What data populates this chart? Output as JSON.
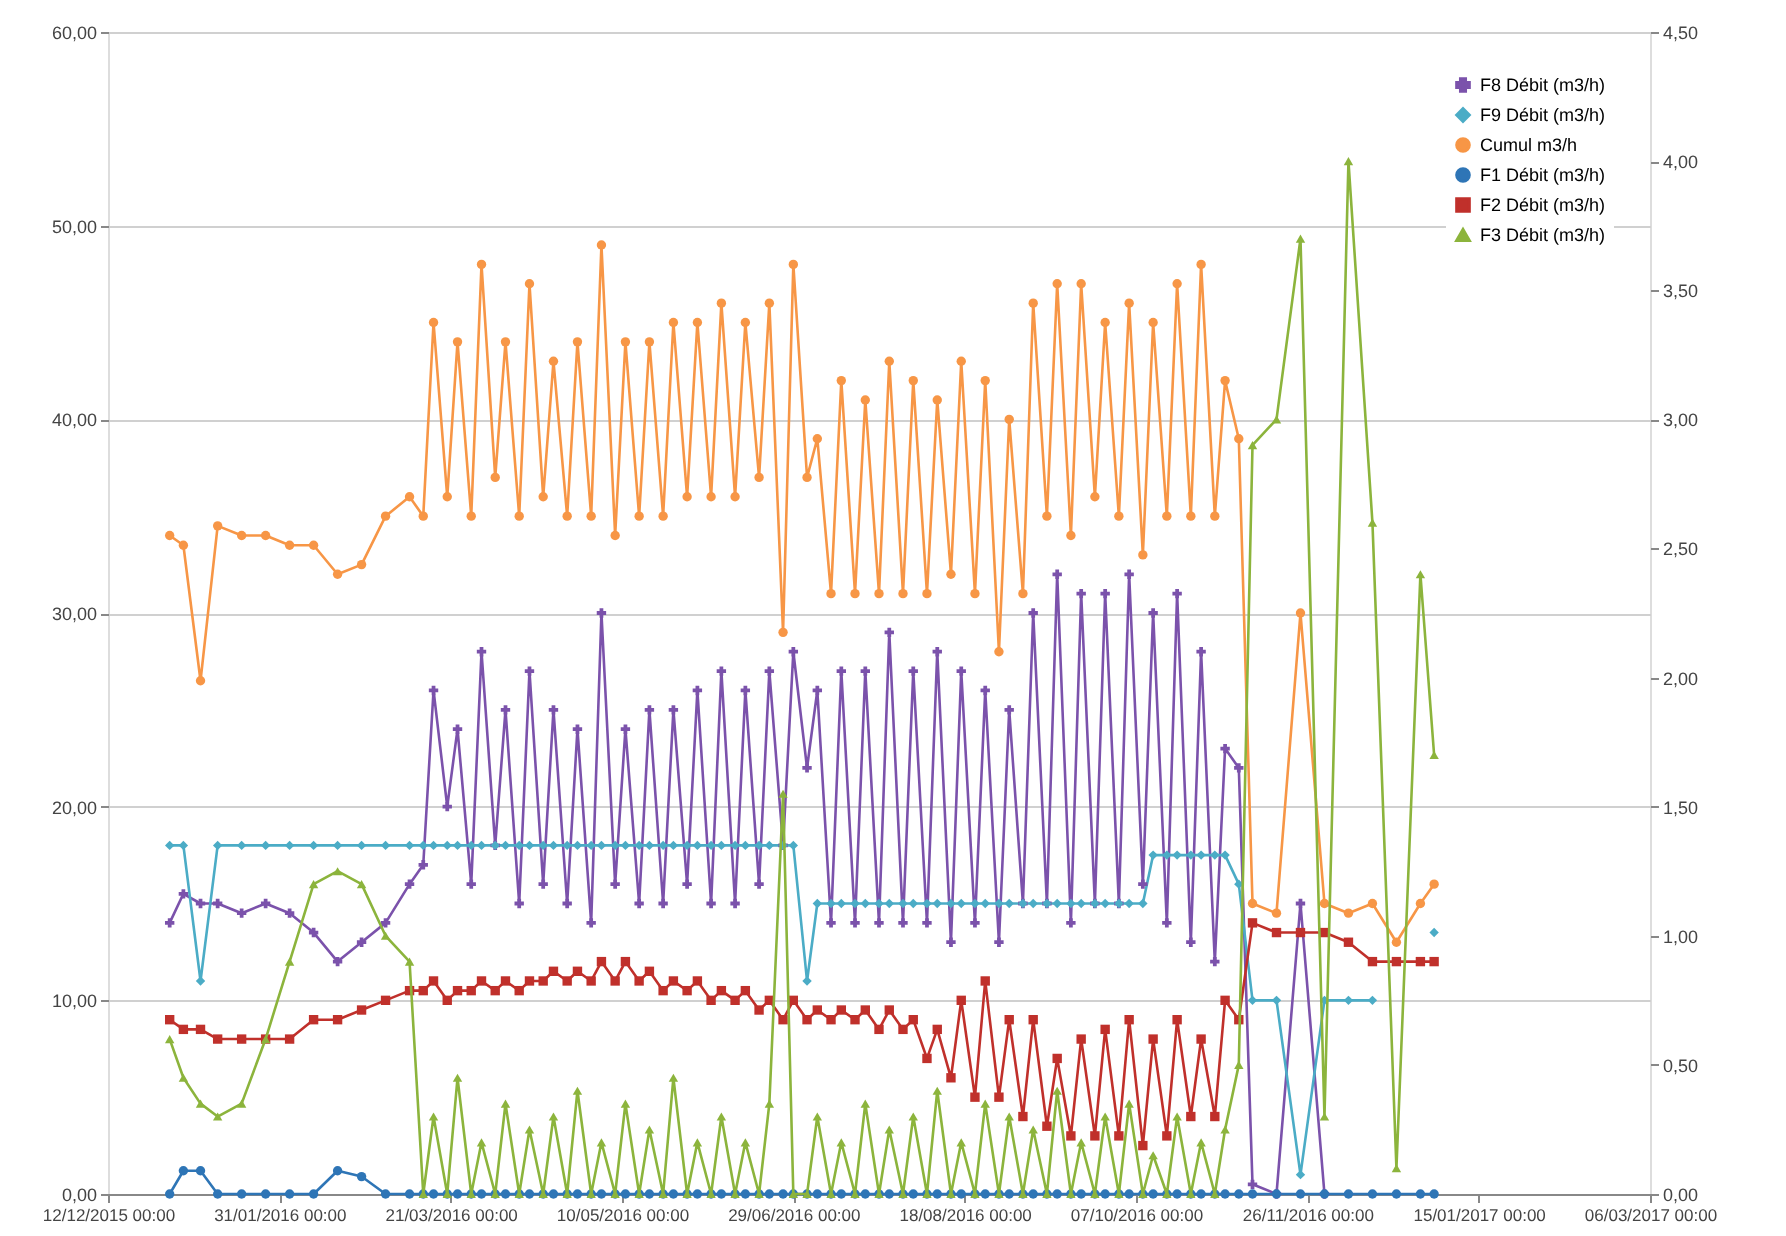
{
  "chart_data": {
    "type": "line",
    "x": [
      "2015-12-30",
      "2016-01-03",
      "2016-01-08",
      "2016-01-13",
      "2016-01-20",
      "2016-01-27",
      "2016-02-03",
      "2016-02-10",
      "2016-02-17",
      "2016-02-24",
      "2016-03-02",
      "2016-03-09",
      "2016-03-13",
      "2016-03-16",
      "2016-03-20",
      "2016-03-23",
      "2016-03-27",
      "2016-03-30",
      "2016-04-03",
      "2016-04-06",
      "2016-04-10",
      "2016-04-13",
      "2016-04-17",
      "2016-04-20",
      "2016-04-24",
      "2016-04-27",
      "2016-05-01",
      "2016-05-04",
      "2016-05-08",
      "2016-05-11",
      "2016-05-15",
      "2016-05-18",
      "2016-05-22",
      "2016-05-25",
      "2016-05-29",
      "2016-06-01",
      "2016-06-05",
      "2016-06-08",
      "2016-06-12",
      "2016-06-15",
      "2016-06-19",
      "2016-06-22",
      "2016-06-26",
      "2016-06-29",
      "2016-07-03",
      "2016-07-06",
      "2016-07-10",
      "2016-07-13",
      "2016-07-17",
      "2016-07-20",
      "2016-07-24",
      "2016-07-27",
      "2016-07-31",
      "2016-08-03",
      "2016-08-07",
      "2016-08-10",
      "2016-08-14",
      "2016-08-17",
      "2016-08-21",
      "2016-08-24",
      "2016-08-28",
      "2016-08-31",
      "2016-09-04",
      "2016-09-07",
      "2016-09-11",
      "2016-09-14",
      "2016-09-18",
      "2016-09-21",
      "2016-09-25",
      "2016-09-28",
      "2016-10-02",
      "2016-10-05",
      "2016-10-09",
      "2016-10-12",
      "2016-10-16",
      "2016-10-19",
      "2016-10-23",
      "2016-10-26",
      "2016-10-30",
      "2016-11-02",
      "2016-11-06",
      "2016-11-10",
      "2016-11-17",
      "2016-11-24",
      "2016-12-01",
      "2016-12-08",
      "2016-12-15",
      "2016-12-22",
      "2016-12-29",
      "2017-01-02"
    ],
    "series": [
      {
        "name": "F8 Débit (m3/h)",
        "color": "#7b52ab",
        "marker": "cross",
        "values": [
          14,
          15.5,
          15,
          15,
          14.5,
          15,
          14.5,
          13.5,
          12,
          13,
          14,
          16,
          17,
          26,
          20,
          24,
          16,
          28,
          18,
          25,
          15,
          27,
          16,
          25,
          15,
          24,
          14,
          30,
          16,
          24,
          15,
          25,
          15,
          25,
          16,
          26,
          15,
          27,
          15,
          26,
          16,
          27,
          18,
          28,
          22,
          26,
          14,
          27,
          14,
          27,
          14,
          29,
          14,
          27,
          14,
          28,
          13,
          27,
          14,
          26,
          13,
          25,
          15,
          30,
          15,
          32,
          14,
          31,
          15,
          31,
          15,
          32,
          16,
          30,
          14,
          31,
          13,
          28,
          12,
          23,
          22,
          0.5,
          0,
          15,
          0,
          null,
          null,
          null,
          null,
          null
        ]
      },
      {
        "name": "F9 Débit (m3/h)",
        "color": "#4bacc6",
        "marker": "diamond",
        "values": [
          18,
          18,
          11,
          18,
          18,
          18,
          18,
          18,
          18,
          18,
          18,
          18,
          18,
          18,
          18,
          18,
          18,
          18,
          18,
          18,
          18,
          18,
          18,
          18,
          18,
          18,
          18,
          18,
          18,
          18,
          18,
          18,
          18,
          18,
          18,
          18,
          18,
          18,
          18,
          18,
          18,
          18,
          18,
          18,
          11,
          15,
          15,
          15,
          15,
          15,
          15,
          15,
          15,
          15,
          15,
          15,
          15,
          15,
          15,
          15,
          15,
          15,
          15,
          15,
          15,
          15,
          15,
          15,
          15,
          15,
          15,
          15,
          15,
          17.5,
          17.5,
          17.5,
          17.5,
          17.5,
          17.5,
          17.5,
          16,
          10,
          10,
          1,
          10,
          10,
          10,
          null,
          null,
          13.5
        ]
      },
      {
        "name": "Cumul m3/h",
        "color": "#f79646",
        "marker": "circle",
        "values": [
          34,
          33.5,
          26.5,
          34.5,
          34,
          34,
          33.5,
          33.5,
          32,
          32.5,
          35,
          36,
          35,
          45,
          36,
          44,
          35,
          48,
          37,
          44,
          35,
          47,
          36,
          43,
          35,
          44,
          35,
          49,
          34,
          44,
          35,
          44,
          35,
          45,
          36,
          45,
          36,
          46,
          36,
          45,
          37,
          46,
          29,
          48,
          37,
          39,
          31,
          42,
          31,
          41,
          31,
          43,
          31,
          42,
          31,
          41,
          32,
          43,
          31,
          42,
          28,
          40,
          31,
          46,
          35,
          47,
          34,
          47,
          36,
          45,
          35,
          46,
          33,
          45,
          35,
          47,
          35,
          48,
          35,
          42,
          39,
          15,
          14.5,
          30,
          15,
          14.5,
          15,
          13,
          15,
          16
        ]
      },
      {
        "name": "F1 Débit (m3/h)",
        "color": "#2e75b6",
        "marker": "circle",
        "values": [
          0,
          1.2,
          1.2,
          0,
          0,
          0,
          0,
          0,
          1.2,
          0.9,
          0,
          0,
          0,
          0,
          0,
          0,
          0,
          0,
          0,
          0,
          0,
          0,
          0,
          0,
          0,
          0,
          0,
          0,
          0,
          0,
          0,
          0,
          0,
          0,
          0,
          0,
          0,
          0,
          0,
          0,
          0,
          0,
          0,
          0,
          0,
          0,
          0,
          0,
          0,
          0,
          0,
          0,
          0,
          0,
          0,
          0,
          0,
          0,
          0,
          0,
          0,
          0,
          0,
          0,
          0,
          0,
          0,
          0,
          0,
          0,
          0,
          0,
          0,
          0,
          0,
          0,
          0,
          0,
          0,
          0,
          0,
          0,
          0,
          0,
          0,
          0,
          0,
          0,
          0,
          0
        ]
      },
      {
        "name": "F2 Débit (m3/h)",
        "color": "#c0302b",
        "marker": "square",
        "values": [
          9,
          8.5,
          8.5,
          8,
          8,
          8,
          8,
          9,
          9,
          9.5,
          10,
          10.5,
          10.5,
          11,
          10,
          10.5,
          10.5,
          11,
          10.5,
          11,
          10.5,
          11,
          11,
          11.5,
          11,
          11.5,
          11,
          12,
          11,
          12,
          11,
          11.5,
          10.5,
          11,
          10.5,
          11,
          10,
          10.5,
          10,
          10.5,
          9.5,
          10,
          9,
          10,
          9,
          9.5,
          9,
          9.5,
          9,
          9.5,
          8.5,
          9.5,
          8.5,
          9,
          7,
          8.5,
          6,
          10,
          5,
          11,
          5,
          9,
          4,
          9,
          3.5,
          7,
          3,
          8,
          3,
          8.5,
          3,
          9,
          2.5,
          8,
          3,
          9,
          4,
          8,
          4,
          10,
          9,
          14,
          13.5,
          13.5,
          13.5,
          13,
          12,
          12,
          12,
          12
        ]
      },
      {
        "name": "F3 Débit (m3/h)",
        "color": "#8cb43c",
        "marker": "triangle",
        "axis": "y2",
        "values": [
          0.6,
          0.45,
          0.35,
          0.3,
          0.35,
          0.6,
          0.9,
          1.2,
          1.25,
          1.2,
          1.0,
          0.9,
          0,
          0.3,
          0,
          0.45,
          0,
          0.2,
          0,
          0.35,
          0,
          0.25,
          0,
          0.3,
          0,
          0.4,
          0,
          0.2,
          0,
          0.35,
          0,
          0.25,
          0,
          0.45,
          0,
          0.2,
          0,
          0.3,
          0,
          0.2,
          0,
          0.35,
          1.55,
          0,
          0,
          0.3,
          0,
          0.2,
          0,
          0.35,
          0,
          0.25,
          0,
          0.3,
          0,
          0.4,
          0,
          0.2,
          0,
          0.35,
          0,
          0.3,
          0,
          0.25,
          0,
          0.4,
          0,
          0.2,
          0,
          0.3,
          0,
          0.35,
          0,
          0.15,
          0,
          0.3,
          0,
          0.2,
          0,
          0.25,
          0.5,
          2.9,
          3.0,
          3.7,
          0.3,
          4.0,
          2.6,
          0.1,
          2.4,
          1.7
        ]
      }
    ],
    "xlim": [
      "2015-12-12",
      "2017-03-06"
    ],
    "xticks": [
      {
        "value": "2015-12-12",
        "label": "12/12/2015 00:00"
      },
      {
        "value": "2016-01-31",
        "label": "31/01/2016 00:00"
      },
      {
        "value": "2016-03-21",
        "label": "21/03/2016 00:00"
      },
      {
        "value": "2016-05-10",
        "label": "10/05/2016 00:00"
      },
      {
        "value": "2016-06-29",
        "label": "29/06/2016 00:00"
      },
      {
        "value": "2016-08-18",
        "label": "18/08/2016 00:00"
      },
      {
        "value": "2016-10-07",
        "label": "07/10/2016 00:00"
      },
      {
        "value": "2016-11-26",
        "label": "26/11/2016 00:00"
      },
      {
        "value": "2017-01-15",
        "label": "15/01/2017 00:00"
      },
      {
        "value": "2017-03-06",
        "label": "06/03/2017 00:00"
      }
    ],
    "ylim": [
      0,
      60
    ],
    "yticks": [
      {
        "value": 0,
        "label": "0,00"
      },
      {
        "value": 10,
        "label": "10,00"
      },
      {
        "value": 20,
        "label": "20,00"
      },
      {
        "value": 30,
        "label": "30,00"
      },
      {
        "value": 40,
        "label": "40,00"
      },
      {
        "value": 50,
        "label": "50,00"
      },
      {
        "value": 60,
        "label": "60,00"
      }
    ],
    "y2lim": [
      0,
      4.5
    ],
    "y2ticks": [
      {
        "value": 0,
        "label": "0,00"
      },
      {
        "value": 0.5,
        "label": "0,50"
      },
      {
        "value": 1,
        "label": "1,00"
      },
      {
        "value": 1.5,
        "label": "1,50"
      },
      {
        "value": 2,
        "label": "2,00"
      },
      {
        "value": 2.5,
        "label": "2,50"
      },
      {
        "value": 3,
        "label": "3,00"
      },
      {
        "value": 3.5,
        "label": "3,50"
      },
      {
        "value": 4,
        "label": "4,00"
      },
      {
        "value": 4.5,
        "label": "4,50"
      }
    ],
    "grid": "y",
    "legend": "top right",
    "line_style": "solid"
  }
}
